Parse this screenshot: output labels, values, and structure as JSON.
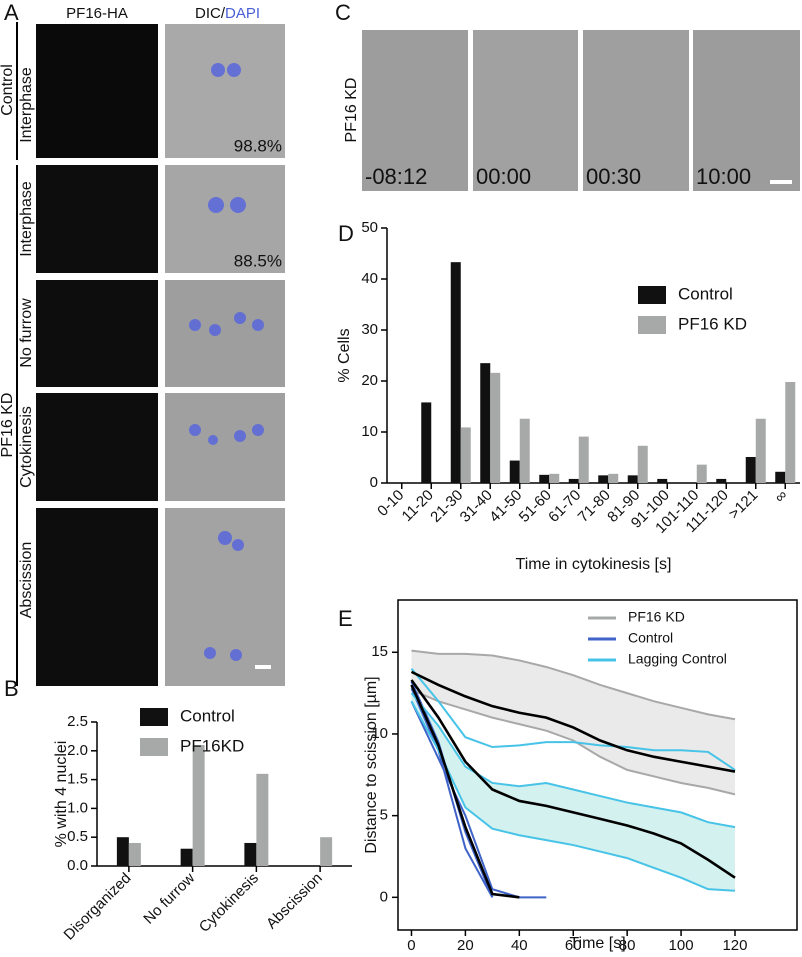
{
  "panels": {
    "A": {
      "letter": "A",
      "columns": [
        "PF16-HA",
        "DIC/",
        "DAPI"
      ],
      "groups": [
        "Control",
        "PF16 KD"
      ],
      "rows": [
        "Interphase",
        "Interphase",
        "No furrow",
        "Cytokinesis",
        "Abscission"
      ],
      "percentages": [
        "98.8%",
        "88.5%"
      ]
    },
    "C": {
      "letter": "C",
      "label": "PF16 KD",
      "times": [
        "-08:12",
        "00:00",
        "00:30",
        "10:00"
      ]
    }
  },
  "chart_data": [
    {
      "type": "bar",
      "panel": "B",
      "ylabel": "% with 4 nuclei",
      "categories": [
        "Disorganized",
        "No furrow",
        "Cytokinesis",
        "Abscission"
      ],
      "series": [
        {
          "name": "Control",
          "color": "#111111",
          "values": [
            0.5,
            0.3,
            0.4,
            0
          ]
        },
        {
          "name": "PF16KD",
          "color": "#a7a9a8",
          "values": [
            0.4,
            2.1,
            1.6,
            0.5
          ]
        }
      ],
      "ylim": [
        0,
        2.5
      ],
      "yticks": [
        {
          "value": 0,
          "label": "0.0"
        },
        0.5,
        {
          "value": 1,
          "label": "1.0"
        },
        1.5,
        {
          "value": 2,
          "label": "2.0"
        },
        2.5
      ],
      "legend": "top"
    },
    {
      "type": "bar",
      "panel": "D",
      "ylabel": "% Cells",
      "xlabel": "Time in cytokinesis [s]",
      "categories": [
        "0-10",
        "11-20",
        "21-30",
        "31-40",
        "41-50",
        "51-60",
        "61-70",
        "71-80",
        "81-90",
        "91-100",
        "101-110",
        "111-120",
        ">121",
        "∞"
      ],
      "series": [
        {
          "name": "Control",
          "color": "#111111",
          "values": [
            0,
            15.8,
            43.3,
            23.5,
            4.4,
            1.6,
            0.8,
            1.5,
            1.5,
            0.8,
            0,
            0.8,
            5.1,
            2.2
          ]
        },
        {
          "name": "PF16 KD",
          "color": "#a7a9a8",
          "values": [
            0,
            0,
            10.9,
            21.6,
            12.6,
            1.8,
            9.1,
            1.8,
            7.3,
            0,
            3.6,
            0,
            12.6,
            19.8
          ]
        }
      ],
      "ylim": [
        0,
        50
      ],
      "yticks": [
        0,
        10,
        20,
        30,
        40,
        50
      ],
      "legend": "right"
    },
    {
      "type": "line",
      "panel": "E",
      "ylabel": "Distance to scission [µm]",
      "xlabel": "Time [s]",
      "x": [
        0,
        10,
        20,
        30,
        40,
        50,
        60,
        70,
        80,
        90,
        100,
        110,
        120
      ],
      "series": [
        {
          "name": "PF16 KD",
          "color": "#a7a9a8",
          "fill": "#e4e5e4",
          "lines": [
            [
              15.1,
              14.9,
              14.9,
              14.8,
              14.5,
              14.1,
              13.6,
              13.0,
              12.5,
              12.0,
              11.6,
              11.2,
              10.9
            ],
            [
              12.7,
              12.0,
              11.5,
              11.0,
              10.6,
              10.2,
              9.6,
              8.6,
              7.8,
              7.4,
              7.0,
              6.7,
              6.3
            ]
          ]
        },
        {
          "name": "Control",
          "color": "#3f63c8",
          "lines": [
            [
              13.2,
              9.5,
              4.0,
              0,
              null,
              null,
              null,
              null,
              null,
              null,
              null,
              null,
              null
            ],
            [
              12.8,
              9.0,
              3.0,
              0,
              null,
              null,
              null,
              null,
              null,
              null,
              null,
              null,
              null
            ],
            [
              12.0,
              8.5,
              5.0,
              0.5,
              0,
              0,
              null,
              null,
              null,
              null,
              null,
              null,
              null
            ]
          ]
        },
        {
          "name": "Lagging Control",
          "color": "#47c3e8",
          "fill": "#c8eeea",
          "lines": [
            [
              12.5,
              10.5,
              8.0,
              7.0,
              6.8,
              7.0,
              6.6,
              6.2,
              5.8,
              5.5,
              5.2,
              4.6,
              4.3
            ],
            [
              12.0,
              9.0,
              5.5,
              4.2,
              3.8,
              3.5,
              3.2,
              2.8,
              2.4,
              1.8,
              1.2,
              0.5,
              0.4
            ],
            [
              14.0,
              12.0,
              9.8,
              9.2,
              9.3,
              9.5,
              9.5,
              9.3,
              9.2,
              9.0,
              9.0,
              8.9,
              7.8
            ]
          ]
        },
        {
          "color": "#000000",
          "lines": [
            [
              13.8,
              13.0,
              12.3,
              11.7,
              11.3,
              11.0,
              10.4,
              9.6,
              9.0,
              8.6,
              8.3,
              8.0,
              7.7
            ],
            [
              13.3,
              11.0,
              8.3,
              6.6,
              5.9,
              5.6,
              5.2,
              4.8,
              4.4,
              3.9,
              3.3,
              2.3,
              1.2
            ],
            [
              13.0,
              9.3,
              4.3,
              0.2,
              0,
              null,
              null,
              null,
              null,
              null,
              null,
              null,
              null
            ]
          ]
        }
      ],
      "xlim": [
        -5,
        143
      ],
      "ylim": [
        -2,
        18.2
      ],
      "xticks": [
        0,
        20,
        40,
        60,
        80,
        100,
        120
      ],
      "yticks": [
        0,
        5,
        10,
        15
      ],
      "legend": "upper right"
    }
  ]
}
